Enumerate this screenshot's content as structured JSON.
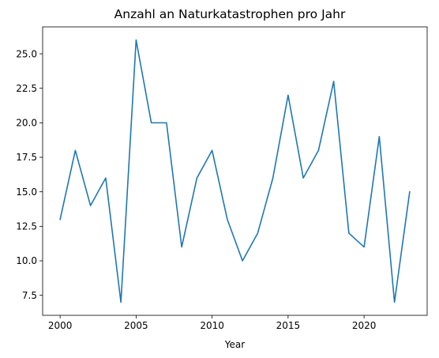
{
  "chart_data": {
    "type": "line",
    "title": "Anzahl an Naturkatastrophen pro Jahr",
    "xlabel": "Year",
    "ylabel": "",
    "x": [
      2000,
      2001,
      2002,
      2003,
      2004,
      2005,
      2006,
      2007,
      2008,
      2009,
      2010,
      2011,
      2012,
      2013,
      2014,
      2015,
      2016,
      2017,
      2018,
      2019,
      2020,
      2021,
      2022,
      2023
    ],
    "series": [
      {
        "values": [
          13,
          18,
          14,
          16,
          7,
          26,
          20,
          20,
          11,
          16,
          18,
          13,
          10,
          12,
          16,
          22,
          16,
          18,
          23,
          12,
          11,
          19,
          7,
          15
        ],
        "color": "#1f77b4"
      }
    ],
    "xlim": [
      1998.85,
      2024.15
    ],
    "ylim": [
      6.05,
      26.95
    ],
    "x_ticks": [
      2000,
      2005,
      2010,
      2015,
      2020
    ],
    "x_tick_labels": [
      "2000",
      "2005",
      "2010",
      "2015",
      "2020"
    ],
    "y_ticks": [
      7.5,
      10.0,
      12.5,
      15.0,
      17.5,
      20.0,
      22.5,
      25.0
    ],
    "y_tick_labels": [
      "7.5",
      "10.0",
      "12.5",
      "15.0",
      "17.5",
      "20.0",
      "22.5",
      "25.0"
    ],
    "grid": false,
    "legend": "none"
  }
}
